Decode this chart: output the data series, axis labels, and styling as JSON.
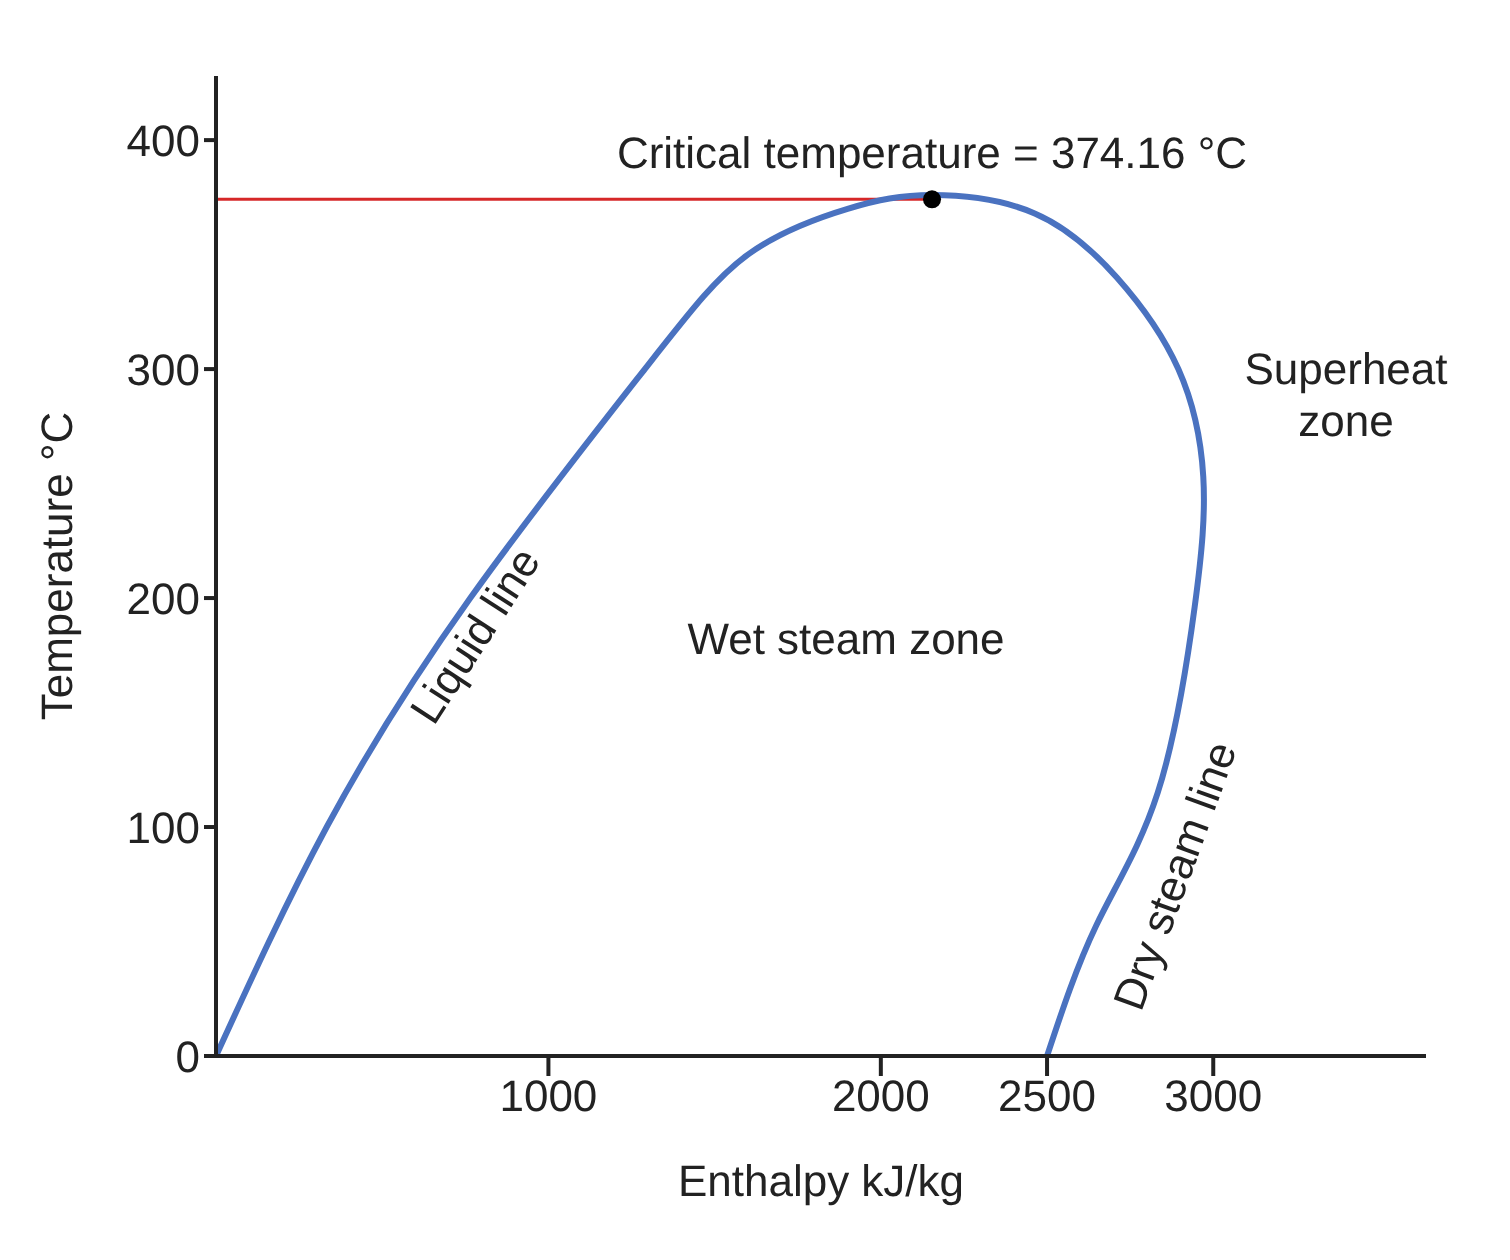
{
  "chart_data": {
    "type": "line",
    "xlabel": "Enthalpy kJ/kg",
    "ylabel": "Temperature °C",
    "xlim": [
      0,
      3640
    ],
    "ylim": [
      0,
      428
    ],
    "xticks": [
      1000,
      2000,
      2500,
      3000
    ],
    "yticks": [
      0,
      100,
      200,
      300,
      400
    ],
    "grid": false,
    "legend": false,
    "series": [
      {
        "color": "#4a72c0",
        "marker": "none",
        "x": [
          0,
          333,
          765,
          1290,
          1600,
          1900,
          2154,
          2463,
          2710,
          2895,
          2970,
          2944,
          2833,
          2648,
          2500
        ],
        "values": [
          0,
          100,
          200,
          300,
          350,
          370,
          376,
          368,
          340,
          300,
          253,
          196,
          115,
          57,
          0
        ]
      },
      {
        "type": "scatter",
        "color": "#000000",
        "marker": "circle",
        "x": [
          2154
        ],
        "values": [
          374.16
        ]
      }
    ],
    "ref_lines": [
      {
        "axis": "y",
        "value": 374.16,
        "label": null,
        "color": "#d62728"
      }
    ],
    "annotations": [
      {
        "text": "Critical temperature = 374.16 °C",
        "x": 2154,
        "y": 374.16
      },
      "Liquid line",
      "Wet steam zone",
      "Superheat zone",
      "Dry steam line"
    ]
  }
}
